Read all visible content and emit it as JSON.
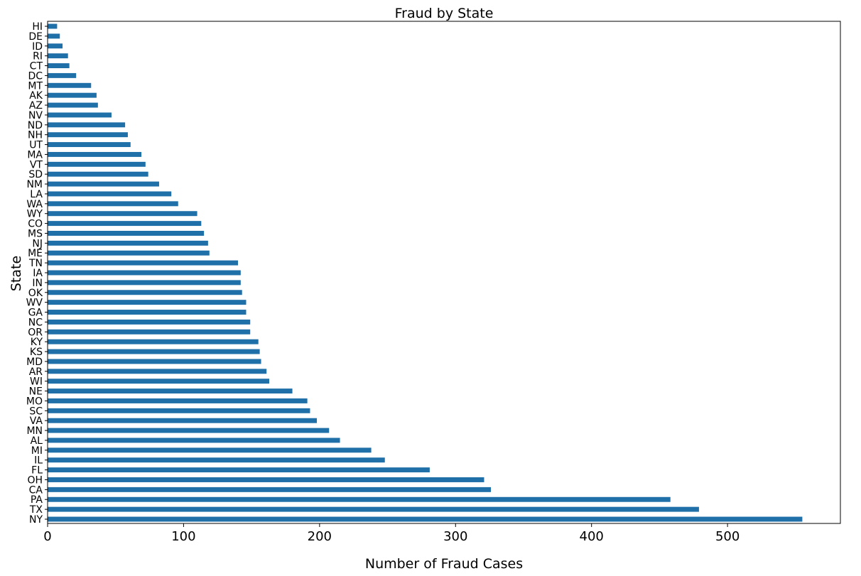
{
  "chart_data": {
    "type": "bar",
    "orientation": "horizontal",
    "title": "Fraud by State",
    "xlabel": "Number of Fraud Cases",
    "ylabel": "State",
    "xlim": [
      0,
      583
    ],
    "xticks": [
      0,
      100,
      200,
      300,
      400,
      500
    ],
    "grid": false,
    "bar_color": "#1f6fa8",
    "categories": [
      "NY",
      "TX",
      "PA",
      "CA",
      "OH",
      "FL",
      "IL",
      "MI",
      "AL",
      "MN",
      "VA",
      "SC",
      "MO",
      "NE",
      "WI",
      "AR",
      "MD",
      "KS",
      "KY",
      "OR",
      "NC",
      "GA",
      "WV",
      "OK",
      "IN",
      "IA",
      "TN",
      "ME",
      "NJ",
      "MS",
      "CO",
      "WY",
      "WA",
      "LA",
      "NM",
      "SD",
      "VT",
      "MA",
      "UT",
      "NH",
      "ND",
      "NV",
      "AZ",
      "AK",
      "MT",
      "DC",
      "CT",
      "RI",
      "ID",
      "DE",
      "HI"
    ],
    "values": [
      555,
      479,
      458,
      326,
      321,
      281,
      248,
      238,
      215,
      207,
      198,
      193,
      191,
      180,
      163,
      161,
      157,
      156,
      155,
      149,
      149,
      146,
      146,
      143,
      142,
      142,
      140,
      119,
      118,
      115,
      113,
      110,
      96,
      91,
      82,
      74,
      72,
      69,
      61,
      59,
      57,
      47,
      37,
      36,
      32,
      21,
      16,
      15,
      11,
      9,
      7
    ]
  }
}
